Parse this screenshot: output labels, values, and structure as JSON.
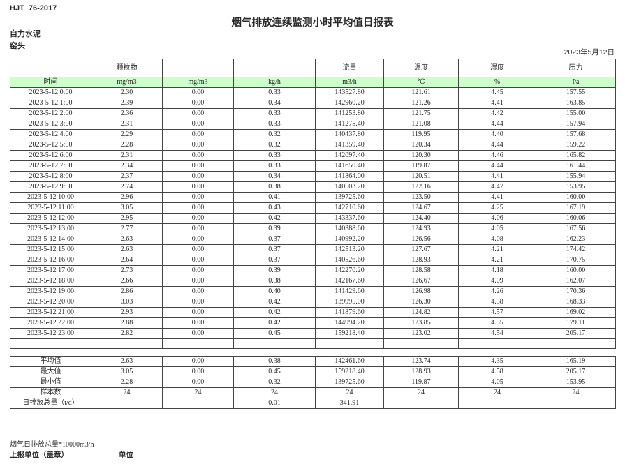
{
  "page": {
    "standard": "HJT  76-2017",
    "title": "烟气排放连续监测小时平均值日报表",
    "company": "自力水泥",
    "station": "窑头",
    "date": "2023年5月12日"
  },
  "table": {
    "group_headers": [
      "颗粒物",
      "",
      "",
      "流量",
      "温度",
      "湿度",
      "压力"
    ],
    "unit_headers": [
      "时间",
      "mg/m3",
      "mg/m3",
      "kg/h",
      "m3/h",
      "℃",
      "%",
      "Pa"
    ],
    "rows": [
      [
        "2023-5-12 0:00",
        "2.30",
        "0.00",
        "0.33",
        "143527.80",
        "121.61",
        "4.45",
        "157.55"
      ],
      [
        "2023-5-12 1:00",
        "2.39",
        "0.00",
        "0.34",
        "142960.20",
        "121.26",
        "4.41",
        "163.85"
      ],
      [
        "2023-5-12 2:00",
        "2.36",
        "0.00",
        "0.33",
        "141253.80",
        "121.75",
        "4.42",
        "155.00"
      ],
      [
        "2023-5-12 3:00",
        "2.31",
        "0.00",
        "0.33",
        "141275.40",
        "121.08",
        "4.44",
        "157.94"
      ],
      [
        "2023-5-12 4:00",
        "2.29",
        "0.00",
        "0.32",
        "140437.80",
        "119.95",
        "4.40",
        "157.68"
      ],
      [
        "2023-5-12 5:00",
        "2.28",
        "0.00",
        "0.32",
        "141359.40",
        "120.34",
        "4.44",
        "159.22"
      ],
      [
        "2023-5-12 6:00",
        "2.31",
        "0.00",
        "0.33",
        "142097.40",
        "120.30",
        "4.46",
        "165.82"
      ],
      [
        "2023-5-12 7:00",
        "2.34",
        "0.00",
        "0.33",
        "141650.40",
        "119.87",
        "4.44",
        "161.44"
      ],
      [
        "2023-5-12 8:00",
        "2.37",
        "0.00",
        "0.34",
        "141864.00",
        "120.51",
        "4.41",
        "155.94"
      ],
      [
        "2023-5-12 9:00",
        "2.74",
        "0.00",
        "0.38",
        "140503.20",
        "122.16",
        "4.47",
        "153.95"
      ],
      [
        "2023-5-12 10:00",
        "2.96",
        "0.00",
        "0.41",
        "139725.60",
        "123.50",
        "4.41",
        "160.00"
      ],
      [
        "2023-5-12 11:00",
        "3.05",
        "0.00",
        "0.43",
        "142710.60",
        "124.67",
        "4.25",
        "167.19"
      ],
      [
        "2023-5-12 12:00",
        "2.95",
        "0.00",
        "0.42",
        "143337.60",
        "124.40",
        "4.06",
        "160.06"
      ],
      [
        "2023-5-12 13:00",
        "2.77",
        "0.00",
        "0.39",
        "140388.60",
        "124.93",
        "4.05",
        "167.56"
      ],
      [
        "2023-5-12 14:00",
        "2.63",
        "0.00",
        "0.37",
        "140992.20",
        "126.56",
        "4.08",
        "162.23"
      ],
      [
        "2023-5-12 15:00",
        "2.63",
        "0.00",
        "0.37",
        "142513.20",
        "127.67",
        "4.21",
        "174.42"
      ],
      [
        "2023-5-12 16:00",
        "2.64",
        "0.00",
        "0.37",
        "140526.60",
        "128.93",
        "4.21",
        "170.75"
      ],
      [
        "2023-5-12 17:00",
        "2.73",
        "0.00",
        "0.39",
        "142270.20",
        "128.58",
        "4.18",
        "160.00"
      ],
      [
        "2023-5-12 18:00",
        "2.66",
        "0.00",
        "0.38",
        "142167.60",
        "126.67",
        "4.09",
        "162.07"
      ],
      [
        "2023-5-12 19:00",
        "2.86",
        "0.00",
        "0.40",
        "141429.60",
        "126.98",
        "4.26",
        "170.36"
      ],
      [
        "2023-5-12 20:00",
        "3.03",
        "0.00",
        "0.42",
        "139995.00",
        "126.30",
        "4.58",
        "168.33"
      ],
      [
        "2023-5-12 21:00",
        "2.93",
        "0.00",
        "0.42",
        "141879.60",
        "124.82",
        "4.57",
        "169.02"
      ],
      [
        "2023-5-12 22:00",
        "2.88",
        "0.00",
        "0.42",
        "144994.20",
        "123.85",
        "4.55",
        "179.11"
      ],
      [
        "2023-5-12 23:00",
        "2.82",
        "0.00",
        "0.45",
        "159218.40",
        "123.02",
        "4.54",
        "205.17"
      ]
    ],
    "summary_rows": [
      {
        "label": "平均值",
        "values": [
          "2.63",
          "0.00",
          "0.38",
          "142461.60",
          "123.74",
          "4.35",
          "165.19"
        ]
      },
      {
        "label": "最大值",
        "values": [
          "3.05",
          "0.00",
          "0.45",
          "159218.40",
          "128.93",
          "4.58",
          "205.17"
        ]
      },
      {
        "label": "最小值",
        "values": [
          "2.28",
          "0.00",
          "0.32",
          "139725.60",
          "119.87",
          "4.05",
          "153.95"
        ]
      },
      {
        "label": "样本数",
        "values": [
          "24",
          "24",
          "24",
          "24",
          "24",
          "24",
          "24"
        ]
      },
      {
        "label": "日排放总量（t/d）",
        "values": [
          "",
          "",
          "0.01",
          "341.91",
          "",
          "",
          ""
        ]
      }
    ]
  },
  "footer": {
    "note": "烟气日排放总量*10000m3/h",
    "report_unit_label": "上报单位（盖章）",
    "unit_label": "单位"
  },
  "colors": {
    "header_fill": "#ccffcc",
    "border": "#444444",
    "text": "#2a2a2a"
  }
}
